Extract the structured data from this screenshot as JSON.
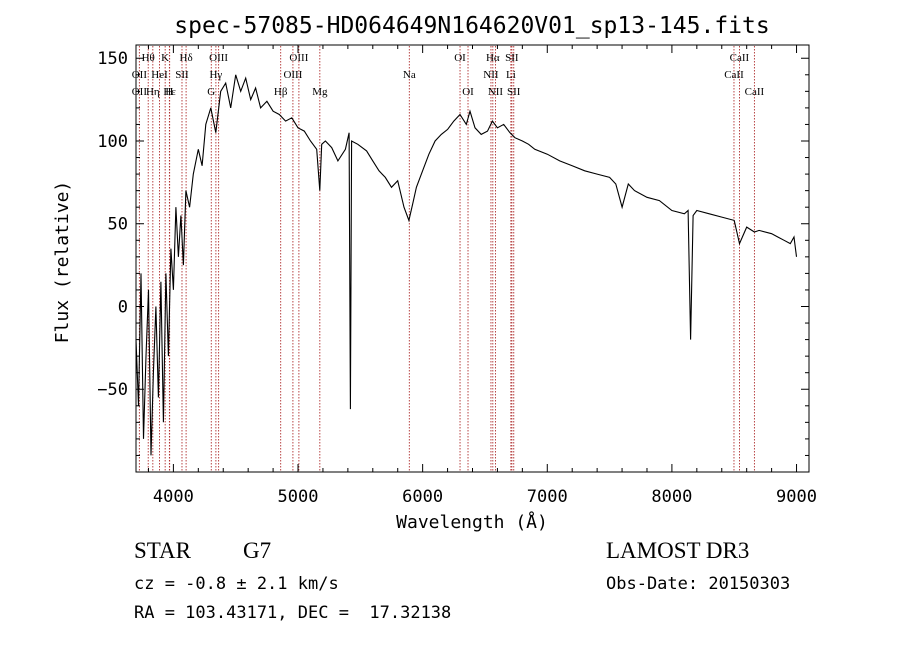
{
  "chart_data": {
    "type": "line",
    "title": "spec-57085-HD064649N164620V01_sp13-145.fits",
    "xlabel": "Wavelength (Å)",
    "ylabel": "Flux (relative)",
    "xlim": [
      3700,
      9100
    ],
    "ylim": [
      -100,
      158
    ],
    "x_ticks": [
      4000,
      5000,
      6000,
      7000,
      8000,
      9000
    ],
    "y_ticks": [
      -50,
      0,
      50,
      100,
      150
    ],
    "grid": false,
    "series": [
      {
        "line_color": "#000000",
        "x": [
          3700,
          3720,
          3740,
          3760,
          3780,
          3800,
          3820,
          3840,
          3860,
          3880,
          3900,
          3920,
          3940,
          3960,
          3980,
          4000,
          4020,
          4040,
          4060,
          4080,
          4100,
          4130,
          4160,
          4200,
          4230,
          4260,
          4300,
          4340,
          4380,
          4420,
          4460,
          4500,
          4540,
          4580,
          4620,
          4660,
          4700,
          4750,
          4800,
          4850,
          4900,
          4950,
          5000,
          5050,
          5100,
          5150,
          5175,
          5190,
          5220,
          5270,
          5320,
          5380,
          5410,
          5420,
          5430,
          5480,
          5550,
          5600,
          5650,
          5700,
          5750,
          5800,
          5850,
          5890,
          5920,
          5950,
          6000,
          6050,
          6100,
          6150,
          6200,
          6250,
          6300,
          6350,
          6380,
          6420,
          6470,
          6520,
          6560,
          6600,
          6650,
          6700,
          6740,
          6800,
          6850,
          6900,
          7000,
          7100,
          7200,
          7300,
          7400,
          7500,
          7550,
          7600,
          7650,
          7700,
          7800,
          7900,
          8000,
          8100,
          8130,
          8150,
          8170,
          8200,
          8300,
          8400,
          8500,
          8542,
          8600,
          8662,
          8700,
          8800,
          8850,
          8900,
          8950,
          8980,
          9000
        ],
        "y": [
          -20,
          -60,
          20,
          -80,
          -30,
          10,
          -90,
          -40,
          0,
          -55,
          15,
          -70,
          20,
          -30,
          35,
          10,
          60,
          30,
          55,
          25,
          70,
          60,
          80,
          95,
          85,
          110,
          120,
          105,
          130,
          135,
          120,
          140,
          130,
          138,
          125,
          132,
          120,
          124,
          118,
          116,
          112,
          114,
          108,
          106,
          100,
          95,
          70,
          98,
          100,
          96,
          88,
          95,
          105,
          -62,
          100,
          98,
          94,
          88,
          82,
          78,
          72,
          76,
          60,
          52,
          62,
          72,
          82,
          92,
          100,
          104,
          107,
          112,
          116,
          110,
          118,
          108,
          104,
          106,
          112,
          108,
          110,
          105,
          102,
          100,
          98,
          95,
          92,
          88,
          85,
          82,
          80,
          78,
          74,
          60,
          74,
          70,
          66,
          64,
          58,
          56,
          58,
          -20,
          55,
          58,
          56,
          54,
          52,
          38,
          48,
          45,
          46,
          44,
          42,
          40,
          38,
          42,
          30
        ]
      }
    ],
    "spectral_lines": [
      {
        "label": "Hθ",
        "x": 3798,
        "row": 0
      },
      {
        "label": "OII",
        "x": 3727,
        "row": 1
      },
      {
        "label": "OII",
        "x": 3727,
        "row": 2
      },
      {
        "label": "Hη",
        "x": 3835,
        "row": 2
      },
      {
        "label": "K",
        "x": 3934,
        "row": 0
      },
      {
        "label": "HeI",
        "x": 3889,
        "row": 1
      },
      {
        "label": "Hε",
        "x": 3970,
        "row": 2
      },
      {
        "label": "H",
        "x": 3968,
        "row": 2
      },
      {
        "label": "Hδ",
        "x": 4102,
        "row": 0
      },
      {
        "label": "SII",
        "x": 4069,
        "row": 1
      },
      {
        "label": "OIII",
        "x": 4363,
        "row": 0
      },
      {
        "label": "Hγ",
        "x": 4341,
        "row": 1
      },
      {
        "label": "G",
        "x": 4304,
        "row": 2
      },
      {
        "label": "Hβ",
        "x": 4861,
        "row": 2
      },
      {
        "label": "OIII",
        "x": 5007,
        "row": 0
      },
      {
        "label": "OIII",
        "x": 4959,
        "row": 1
      },
      {
        "label": "Mg",
        "x": 5175,
        "row": 2
      },
      {
        "label": "Na",
        "x": 5893,
        "row": 1
      },
      {
        "label": "OI",
        "x": 6300,
        "row": 0
      },
      {
        "label": "OI",
        "x": 6364,
        "row": 2
      },
      {
        "label": "Hα",
        "x": 6563,
        "row": 0
      },
      {
        "label": "SII",
        "x": 6716,
        "row": 0
      },
      {
        "label": "NII",
        "x": 6548,
        "row": 1
      },
      {
        "label": "Li",
        "x": 6708,
        "row": 1
      },
      {
        "label": "NII",
        "x": 6584,
        "row": 2
      },
      {
        "label": "SII",
        "x": 6731,
        "row": 2
      },
      {
        "label": "CaII",
        "x": 8542,
        "row": 0
      },
      {
        "label": "CaII",
        "x": 8498,
        "row": 1
      },
      {
        "label": "CaII",
        "x": 8662,
        "row": 2
      }
    ],
    "marker_lines": [
      3727,
      3798,
      3835,
      3889,
      3934,
      3968,
      3970,
      4069,
      4102,
      4304,
      4341,
      4363,
      4861,
      4959,
      5007,
      5175,
      5893,
      6300,
      6364,
      6548,
      6563,
      6584,
      6708,
      6716,
      6731,
      8498,
      8542,
      8662
    ],
    "marker_line_color": "#b03030"
  },
  "info": {
    "object_class": "STAR",
    "subclass": "G7",
    "survey": "LAMOST DR3",
    "redshift_line": "cz = -0.8 ± 2.1 km/s",
    "obs_date": "Obs-Date: 20150303",
    "coords": "RA = 103.43171, DEC =  17.32138"
  }
}
